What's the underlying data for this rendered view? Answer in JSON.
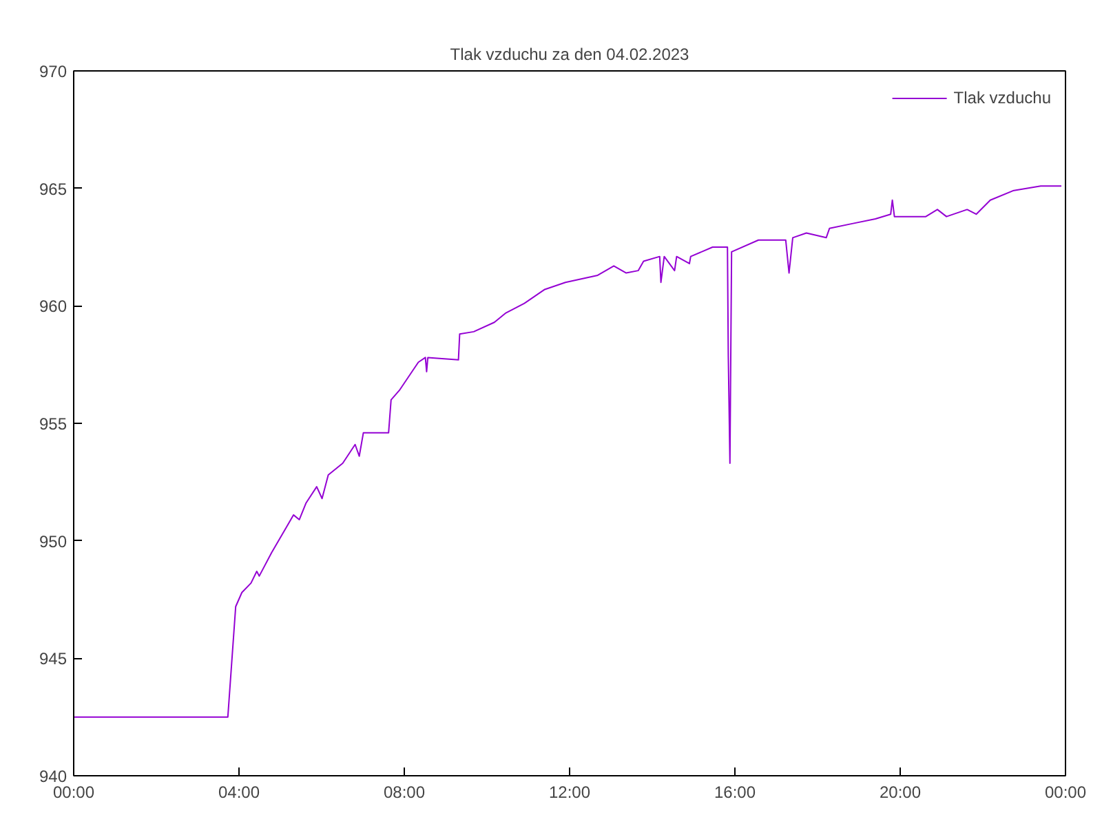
{
  "chart_data": {
    "type": "line",
    "title": "Tlak vzduchu za den 04.02.2023",
    "x": [
      0,
      3.73,
      3.92,
      4.07,
      4.29,
      4.43,
      4.49,
      4.79,
      5.32,
      5.46,
      5.62,
      5.88,
      6.01,
      6.16,
      6.51,
      6.81,
      6.91,
      7.01,
      7.62,
      7.68,
      7.88,
      8.34,
      8.51,
      8.54,
      8.57,
      9.31,
      9.34,
      9.68,
      10.18,
      10.46,
      10.9,
      11.4,
      11.9,
      12.68,
      13.07,
      13.37,
      13.66,
      13.79,
      14.18,
      14.21,
      14.29,
      14.54,
      14.59,
      14.9,
      14.93,
      15.46,
      15.82,
      15.84,
      15.88,
      15.92,
      16.57,
      17.23,
      17.31,
      17.4,
      17.73,
      18.21,
      18.29,
      18.84,
      19.4,
      19.77,
      19.81,
      19.86,
      20.62,
      20.9,
      21.12,
      21.62,
      21.84,
      22.18,
      22.73,
      23.4,
      23.9
    ],
    "series": [
      {
        "name": "Tlak vzduchu",
        "color": "#9400d3",
        "values": [
          942.5,
          942.5,
          947.2,
          947.8,
          948.2,
          948.7,
          948.5,
          949.5,
          951.1,
          950.9,
          951.6,
          952.3,
          951.8,
          952.8,
          953.3,
          954.1,
          953.6,
          954.6,
          954.6,
          956.0,
          956.4,
          957.6,
          957.8,
          957.2,
          957.8,
          957.7,
          958.8,
          958.9,
          959.3,
          959.7,
          960.1,
          960.7,
          961.0,
          961.3,
          961.7,
          961.4,
          961.5,
          961.9,
          962.1,
          961.0,
          962.1,
          961.5,
          962.1,
          961.8,
          962.1,
          962.5,
          962.5,
          957.9,
          953.3,
          962.3,
          962.8,
          962.8,
          961.4,
          962.9,
          963.1,
          962.9,
          963.3,
          963.5,
          963.7,
          963.9,
          964.5,
          963.8,
          963.8,
          964.1,
          963.8,
          964.1,
          963.9,
          964.5,
          964.9,
          965.1,
          965.1
        ]
      }
    ],
    "xlim": [
      0,
      24
    ],
    "xticks": [
      {
        "value": 0,
        "label": "00:00"
      },
      {
        "value": 4,
        "label": "04:00"
      },
      {
        "value": 8,
        "label": "08:00"
      },
      {
        "value": 12,
        "label": "12:00"
      },
      {
        "value": 16,
        "label": "16:00"
      },
      {
        "value": 20,
        "label": "20:00"
      },
      {
        "value": 24,
        "label": "00:00"
      }
    ],
    "ylim": [
      940,
      970
    ],
    "yticks": [
      940,
      945,
      950,
      955,
      960,
      965,
      970
    ],
    "grid": false,
    "legend": "top right",
    "marker": "none",
    "line_style": "solid"
  }
}
